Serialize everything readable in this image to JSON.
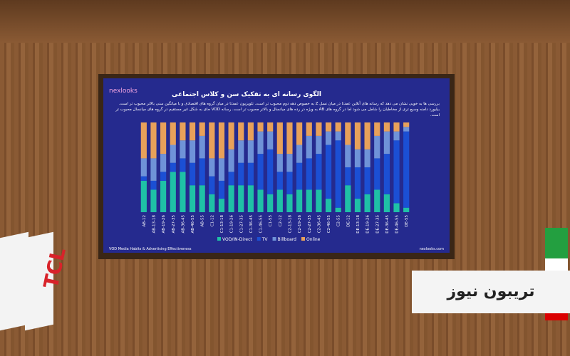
{
  "logo": "nexlooks",
  "footer_left": "VOD Media Habits & Advertising Effectiveness",
  "footer_right": "nexlooks.com",
  "watermark": "تریبون نیوز",
  "flag_text": "TCL",
  "chart_data": {
    "type": "stacked_bar",
    "title": "الگوی رسانه ای به تفکیک سن و کلاس اجتماعی",
    "subtitle": "بررسی ها به خوبی نشان می دهد که رسانه های آنلاین عمدتا در میان نسل Z به خصوص دهه دوم محبوب تر است. تلویزیون عمدتا در میان گروه های اقتصادی و با میانگین سنی بالاتر محبوب تر است. بیلبورد دامنه وسیع تری از مخاطبان را شامل می شود اما در گروه های AB به ویژه در رده های میانسال و بالاتر محبوب تر است. رسانه VOD جای به شکل غیر مستقیم در گروه های میانسال محبوب تر است.",
    "categories": [
      "AB-12",
      "AB-13-18",
      "AB-19-26",
      "AB-27-35",
      "AB-36-45",
      "AB-46-55",
      "AB-55",
      "C1-12",
      "C1-13-18",
      "C1-19-26",
      "C1-27-35",
      "C1-36-45",
      "C1-46-55",
      "C1-55",
      "C2-12",
      "C2-13-18",
      "C2-19-26",
      "C2-27-35",
      "C2-36-45",
      "C2-46-55",
      "C2-55",
      "DE-12",
      "DE-13-18",
      "DE-19-26",
      "DE-27-35",
      "DE-36-45",
      "DE-46-55",
      "DE-55"
    ],
    "ylim": [
      0,
      100
    ],
    "legend": "bottom",
    "series": [
      {
        "name": "VOD/IN-Direct",
        "color": "#1fc1a6",
        "values": [
          35,
          25,
          35,
          45,
          45,
          30,
          30,
          20,
          15,
          30,
          30,
          30,
          25,
          20,
          25,
          20,
          25,
          25,
          25,
          15,
          5,
          30,
          15,
          20,
          25,
          20,
          10,
          5
        ]
      },
      {
        "name": "TV",
        "color": "#1b4fd4",
        "values": [
          5,
          10,
          10,
          10,
          15,
          25,
          30,
          20,
          20,
          15,
          25,
          25,
          40,
          50,
          20,
          25,
          30,
          35,
          40,
          60,
          75,
          20,
          35,
          30,
          35,
          45,
          70,
          85
        ]
      },
      {
        "name": "Billboard",
        "color": "#6f93d8",
        "values": [
          20,
          25,
          20,
          20,
          20,
          25,
          25,
          20,
          25,
          25,
          25,
          25,
          25,
          20,
          20,
          20,
          20,
          25,
          20,
          15,
          10,
          25,
          20,
          20,
          25,
          25,
          10,
          5
        ]
      },
      {
        "name": "Online",
        "color": "#e8a15a",
        "values": [
          40,
          40,
          35,
          25,
          20,
          20,
          15,
          40,
          40,
          30,
          20,
          20,
          10,
          10,
          35,
          35,
          25,
          15,
          15,
          10,
          10,
          25,
          30,
          30,
          15,
          10,
          10,
          5
        ]
      }
    ]
  }
}
